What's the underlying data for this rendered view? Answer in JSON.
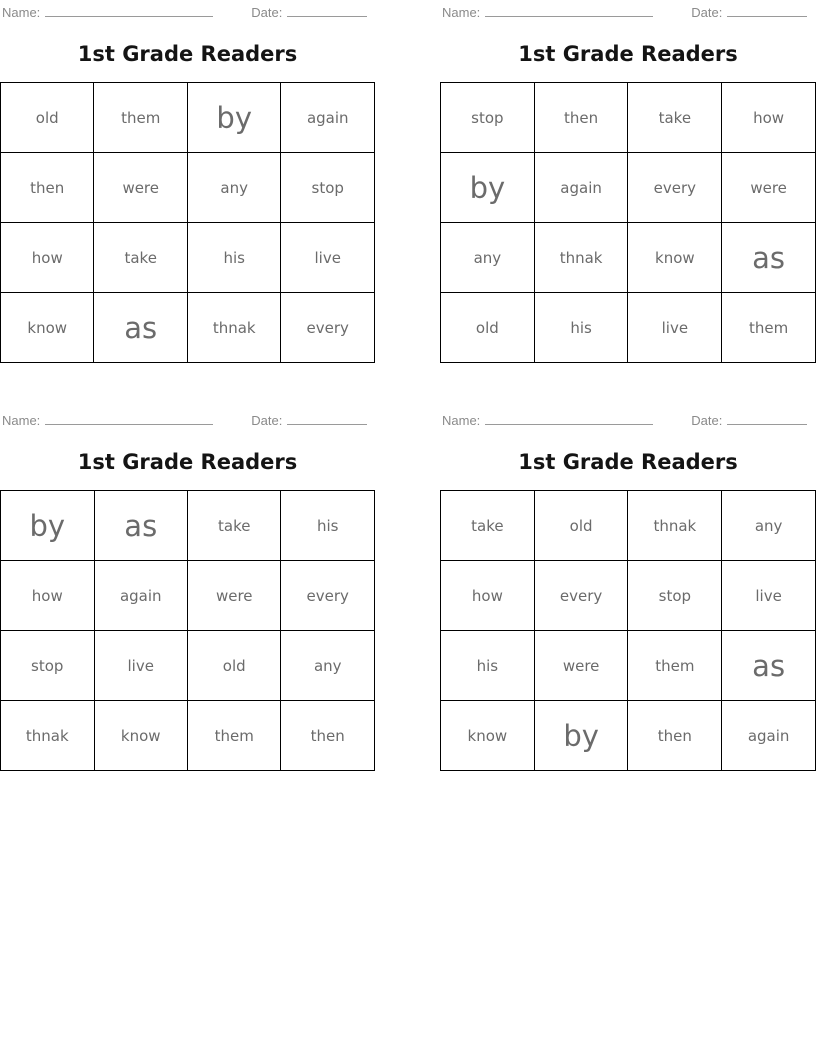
{
  "worksheet": {
    "name_label": "Name:",
    "date_label": "Date:",
    "card_title": "1st Grade Readers"
  },
  "colors": {
    "word": "#6b6b6b",
    "label": "#8a8a8a",
    "title": "#141414",
    "grid": "#000000",
    "underline": "#9a9a9a"
  },
  "cards": [
    {
      "position": "top-left",
      "grid": [
        [
          {
            "text": "old"
          },
          {
            "text": "them"
          },
          {
            "text": "by",
            "large": true
          },
          {
            "text": "again"
          }
        ],
        [
          {
            "text": "then"
          },
          {
            "text": "were"
          },
          {
            "text": "any"
          },
          {
            "text": "stop"
          }
        ],
        [
          {
            "text": "how"
          },
          {
            "text": "take"
          },
          {
            "text": "his"
          },
          {
            "text": "live"
          }
        ],
        [
          {
            "text": "know"
          },
          {
            "text": "as",
            "large": true
          },
          {
            "text": "thnak"
          },
          {
            "text": "every"
          }
        ]
      ]
    },
    {
      "position": "top-right",
      "grid": [
        [
          {
            "text": "stop"
          },
          {
            "text": "then"
          },
          {
            "text": "take"
          },
          {
            "text": "how"
          }
        ],
        [
          {
            "text": "by",
            "large": true
          },
          {
            "text": "again"
          },
          {
            "text": "every"
          },
          {
            "text": "were"
          }
        ],
        [
          {
            "text": "any"
          },
          {
            "text": "thnak"
          },
          {
            "text": "know"
          },
          {
            "text": "as",
            "large": true
          }
        ],
        [
          {
            "text": "old"
          },
          {
            "text": "his"
          },
          {
            "text": "live"
          },
          {
            "text": "them"
          }
        ]
      ]
    },
    {
      "position": "bottom-left",
      "grid": [
        [
          {
            "text": "by",
            "large": true
          },
          {
            "text": "as",
            "large": true
          },
          {
            "text": "take"
          },
          {
            "text": "his"
          }
        ],
        [
          {
            "text": "how"
          },
          {
            "text": "again"
          },
          {
            "text": "were"
          },
          {
            "text": "every"
          }
        ],
        [
          {
            "text": "stop"
          },
          {
            "text": "live"
          },
          {
            "text": "old"
          },
          {
            "text": "any"
          }
        ],
        [
          {
            "text": "thnak"
          },
          {
            "text": "know"
          },
          {
            "text": "them"
          },
          {
            "text": "then"
          }
        ]
      ]
    },
    {
      "position": "bottom-right",
      "grid": [
        [
          {
            "text": "take"
          },
          {
            "text": "old"
          },
          {
            "text": "thnak"
          },
          {
            "text": "any"
          }
        ],
        [
          {
            "text": "how"
          },
          {
            "text": "every"
          },
          {
            "text": "stop"
          },
          {
            "text": "live"
          }
        ],
        [
          {
            "text": "his"
          },
          {
            "text": "were"
          },
          {
            "text": "them"
          },
          {
            "text": "as",
            "large": true
          }
        ],
        [
          {
            "text": "know"
          },
          {
            "text": "by",
            "large": true
          },
          {
            "text": "then"
          },
          {
            "text": "again"
          }
        ]
      ]
    }
  ]
}
